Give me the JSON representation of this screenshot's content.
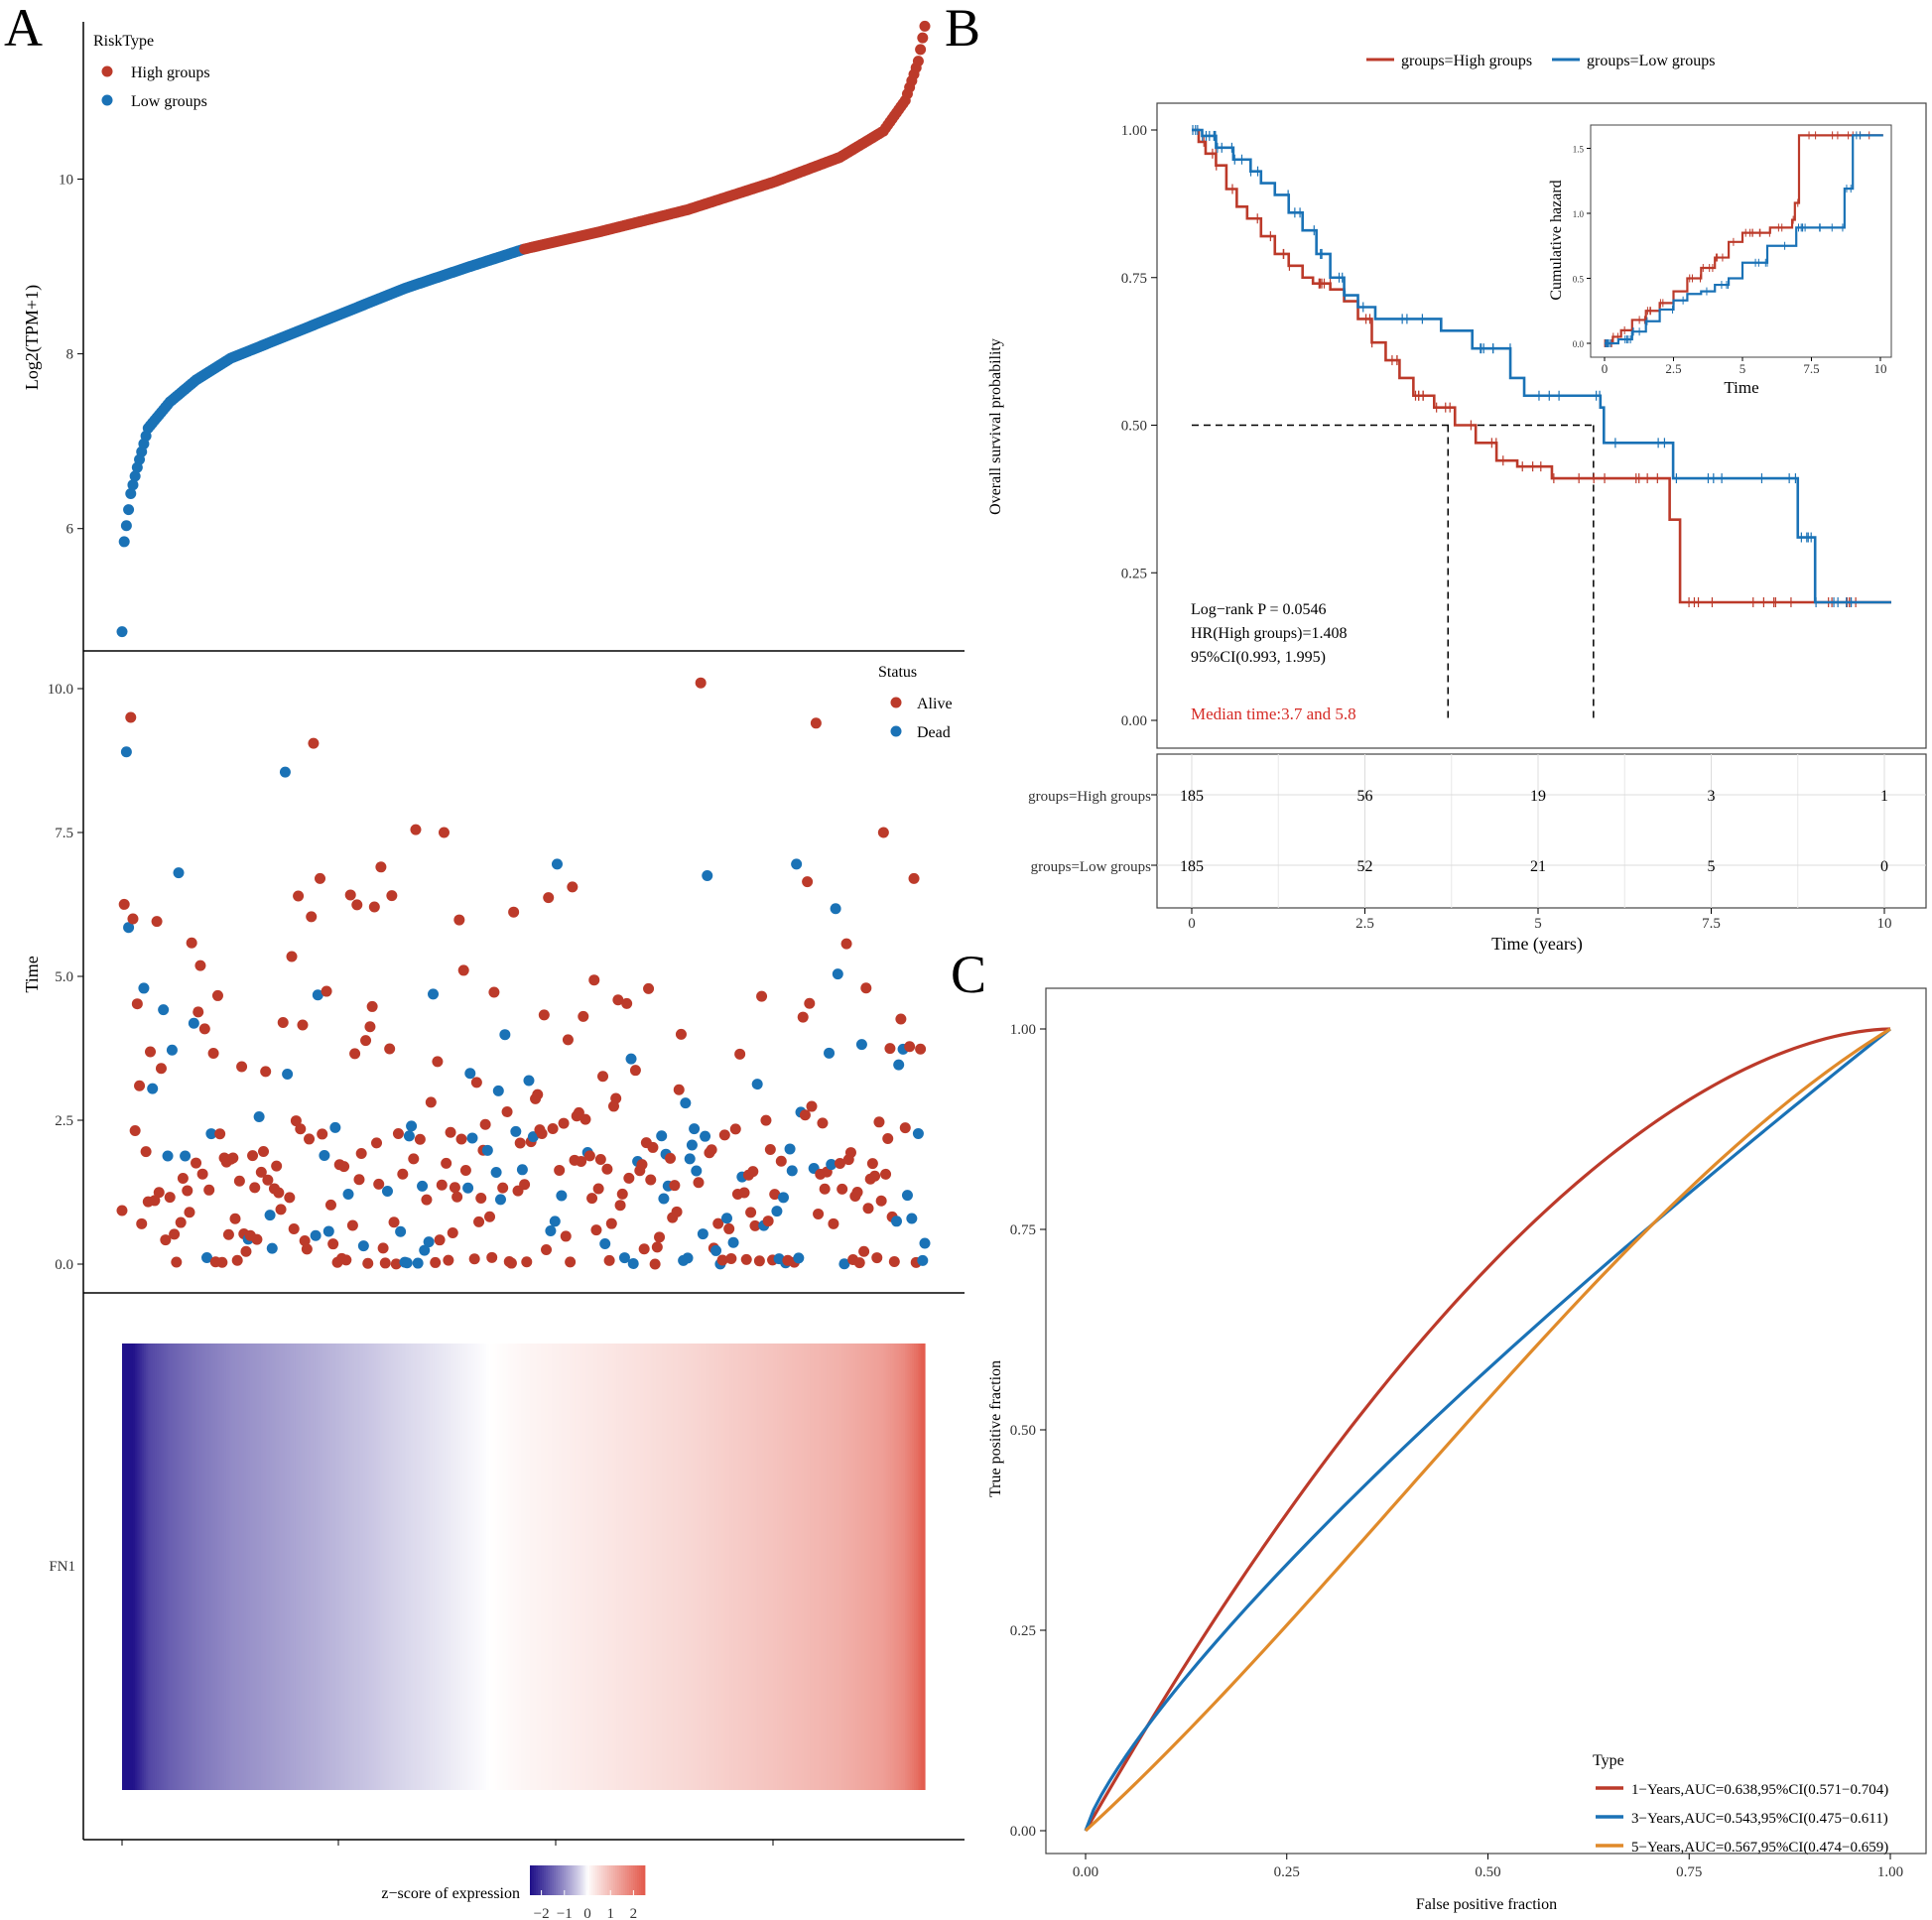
{
  "colors": {
    "high": "#bc3a2a",
    "low": "#1a72b6",
    "orange": "#e08a2a",
    "median": "#d62a25",
    "heat_low": "#21128a",
    "heat_mid": "#ffffff",
    "heat_high": "#e35c4e"
  },
  "panels": {
    "a": "A",
    "b": "B",
    "c": "C"
  },
  "chart_data": [
    {
      "id": "A-top",
      "type": "scatter",
      "ylabel": "Log2(TPM+1)",
      "xlabel": "",
      "ylim": [
        4.6,
        11.8
      ],
      "yticks": [
        6,
        8,
        10
      ],
      "legend": {
        "title": "RiskType",
        "items": [
          "High groups",
          "Low groups"
        ],
        "placement": "top-left"
      },
      "n_samples": 370,
      "split_index": 185,
      "anchors_index": [
        0,
        1,
        4,
        7,
        12,
        22,
        34,
        50,
        70,
        100,
        130,
        160,
        185,
        220,
        260,
        300,
        330,
        350,
        360,
        366,
        369
      ],
      "anchors_value": [
        4.82,
        5.85,
        6.4,
        6.7,
        7.15,
        7.45,
        7.7,
        7.95,
        8.15,
        8.45,
        8.75,
        9.0,
        9.2,
        9.4,
        9.65,
        9.97,
        10.25,
        10.55,
        10.9,
        11.35,
        11.75
      ]
    },
    {
      "id": "A-middle",
      "type": "scatter",
      "ylabel": "Time",
      "xlabel": "",
      "ylim": [
        -0.5,
        10.5
      ],
      "yticks": [
        0.0,
        2.5,
        5.0,
        7.5,
        10.0
      ],
      "ytick_labels": [
        "0.0",
        "2.5",
        "5.0",
        "7.5",
        "10.0"
      ],
      "legend": {
        "title": "Status",
        "items": [
          "Alive",
          "Dead"
        ],
        "placement": "top-right"
      },
      "highlight_points": [
        {
          "i": 2,
          "t": 8.9,
          "s": "Dead"
        },
        {
          "i": 4,
          "t": 9.5,
          "s": "Alive"
        },
        {
          "i": 3,
          "t": 5.85,
          "s": "Dead"
        },
        {
          "i": 5,
          "t": 6.0,
          "s": "Alive"
        },
        {
          "i": 75,
          "t": 8.55,
          "s": "Dead"
        },
        {
          "i": 88,
          "t": 9.05,
          "s": "Alive"
        },
        {
          "i": 91,
          "t": 6.7,
          "s": "Alive"
        },
        {
          "i": 119,
          "t": 6.9,
          "s": "Alive"
        },
        {
          "i": 135,
          "t": 7.55,
          "s": "Alive"
        },
        {
          "i": 148,
          "t": 7.5,
          "s": "Alive"
        },
        {
          "i": 200,
          "t": 6.95,
          "s": "Dead"
        },
        {
          "i": 266,
          "t": 10.1,
          "s": "Alive"
        },
        {
          "i": 319,
          "t": 9.4,
          "s": "Alive"
        },
        {
          "i": 350,
          "t": 7.5,
          "s": "Alive"
        },
        {
          "i": 310,
          "t": 6.95,
          "s": "Dead"
        },
        {
          "i": 269,
          "t": 6.75,
          "s": "Dead"
        },
        {
          "i": 364,
          "t": 6.7,
          "s": "Alive"
        },
        {
          "i": 26,
          "t": 6.8,
          "s": "Dead"
        }
      ]
    },
    {
      "id": "A-bottom",
      "type": "heatmap",
      "row_label": "FN1",
      "colorbar": {
        "title": "z−score of expression",
        "ticks": [
          "−2",
          "−1",
          "0",
          "1",
          "2"
        ]
      }
    },
    {
      "id": "B-main",
      "type": "line",
      "ylabel": "Overall survival probability",
      "xlabel": "Time (years)",
      "xlim": [
        -0.5,
        10.5
      ],
      "ylim": [
        0,
        1.0
      ],
      "xticks": [
        "0",
        "2.5",
        "5",
        "7.5",
        "10"
      ],
      "yticks": [
        "0.00",
        "0.25",
        "0.50",
        "0.75",
        "1.00"
      ],
      "legend": [
        "groups=High groups",
        "groups=Low groups"
      ],
      "series": [
        {
          "name": "High groups",
          "steps": [
            [
              0,
              1.0
            ],
            [
              0.1,
              0.98
            ],
            [
              0.2,
              0.96
            ],
            [
              0.35,
              0.94
            ],
            [
              0.5,
              0.9
            ],
            [
              0.65,
              0.87
            ],
            [
              0.8,
              0.85
            ],
            [
              1.0,
              0.82
            ],
            [
              1.2,
              0.79
            ],
            [
              1.4,
              0.77
            ],
            [
              1.6,
              0.75
            ],
            [
              1.75,
              0.74
            ],
            [
              2.0,
              0.73
            ],
            [
              2.2,
              0.71
            ],
            [
              2.4,
              0.68
            ],
            [
              2.6,
              0.64
            ],
            [
              2.8,
              0.61
            ],
            [
              3.0,
              0.58
            ],
            [
              3.2,
              0.55
            ],
            [
              3.5,
              0.53
            ],
            [
              3.8,
              0.5
            ],
            [
              4.1,
              0.47
            ],
            [
              4.4,
              0.44
            ],
            [
              4.7,
              0.43
            ],
            [
              5.2,
              0.41
            ],
            [
              6.7,
              0.41
            ],
            [
              6.9,
              0.34
            ],
            [
              7.05,
              0.2
            ],
            [
              10.1,
              0.2
            ]
          ]
        },
        {
          "name": "Low groups",
          "steps": [
            [
              0,
              1.0
            ],
            [
              0.15,
              0.99
            ],
            [
              0.35,
              0.97
            ],
            [
              0.6,
              0.95
            ],
            [
              0.85,
              0.93
            ],
            [
              1.0,
              0.91
            ],
            [
              1.2,
              0.89
            ],
            [
              1.4,
              0.86
            ],
            [
              1.6,
              0.83
            ],
            [
              1.8,
              0.79
            ],
            [
              2.0,
              0.75
            ],
            [
              2.2,
              0.72
            ],
            [
              2.4,
              0.7
            ],
            [
              2.65,
              0.68
            ],
            [
              3.6,
              0.66
            ],
            [
              4.05,
              0.63
            ],
            [
              4.6,
              0.58
            ],
            [
              4.8,
              0.55
            ],
            [
              5.9,
              0.53
            ],
            [
              5.95,
              0.47
            ],
            [
              6.95,
              0.41
            ],
            [
              8.75,
              0.31
            ],
            [
              9.0,
              0.2
            ],
            [
              10.1,
              0.2
            ]
          ]
        }
      ],
      "annotations": [
        "Log−rank P = 0.0546",
        "HR(High groups)=1.408",
        " 95%CI(0.993, 1.995)"
      ],
      "median_text": "Median time:3.7 and 5.8",
      "median_times": [
        3.7,
        5.8
      ]
    },
    {
      "id": "B-inset",
      "type": "line",
      "ylabel": "Cumulative hazard",
      "xlabel": "Time",
      "xlim": [
        -0.4,
        10.5
      ],
      "ylim": [
        -0.05,
        1.65
      ],
      "xticks": [
        "0",
        "2.5",
        "5",
        "7.5",
        "10"
      ],
      "yticks": [
        "0.0",
        "0.5",
        "1.0",
        "1.5"
      ],
      "series": [
        {
          "name": "High groups",
          "steps": [
            [
              0,
              0
            ],
            [
              0.3,
              0.05
            ],
            [
              0.6,
              0.1
            ],
            [
              1.0,
              0.18
            ],
            [
              1.5,
              0.25
            ],
            [
              2.0,
              0.31
            ],
            [
              2.5,
              0.4
            ],
            [
              3.0,
              0.5
            ],
            [
              3.5,
              0.58
            ],
            [
              4.0,
              0.66
            ],
            [
              4.5,
              0.78
            ],
            [
              5.0,
              0.85
            ],
            [
              6.0,
              0.89
            ],
            [
              6.8,
              0.95
            ],
            [
              6.9,
              1.08
            ],
            [
              7.05,
              1.6
            ],
            [
              10.1,
              1.6
            ]
          ]
        },
        {
          "name": "Low groups",
          "steps": [
            [
              0,
              0
            ],
            [
              0.5,
              0.03
            ],
            [
              1.0,
              0.09
            ],
            [
              1.5,
              0.17
            ],
            [
              2.0,
              0.26
            ],
            [
              2.5,
              0.33
            ],
            [
              3.0,
              0.38
            ],
            [
              3.5,
              0.4
            ],
            [
              4.0,
              0.45
            ],
            [
              4.5,
              0.5
            ],
            [
              5.0,
              0.62
            ],
            [
              5.9,
              0.75
            ],
            [
              6.95,
              0.89
            ],
            [
              8.7,
              1.19
            ],
            [
              9.0,
              1.6
            ],
            [
              10.1,
              1.6
            ]
          ]
        }
      ]
    },
    {
      "id": "B-risk-table",
      "type": "table",
      "row_labels": [
        "groups=High groups",
        "groups=Low groups"
      ],
      "columns": [
        "0",
        "2.5",
        "5",
        "7.5",
        "10"
      ],
      "rows": [
        [
          "185",
          "56",
          "19",
          "3",
          "1"
        ],
        [
          "185",
          "52",
          "21",
          "5",
          "0"
        ]
      ]
    },
    {
      "id": "C-roc",
      "type": "line",
      "xlabel": "False positive fraction",
      "ylabel": "True positive fraction",
      "xlim": [
        -0.05,
        1.05
      ],
      "ylim": [
        -0.05,
        1.05
      ],
      "xticks": [
        "0.00",
        "0.25",
        "0.50",
        "0.75",
        "1.00"
      ],
      "yticks": [
        "0.00",
        "0.25",
        "0.50",
        "0.75",
        "1.00"
      ],
      "legend_title": "Type",
      "series": [
        {
          "name": "1−Years,AUC=0.638,95%CI(0.571−0.704)",
          "auc": 0.638,
          "color": "#bc3a2a"
        },
        {
          "name": "3−Years,AUC=0.543,95%CI(0.475−0.611)",
          "auc": 0.543,
          "color": "#1a72b6"
        },
        {
          "name": "5−Years,AUC=0.567,95%CI(0.474−0.659)",
          "auc": 0.567,
          "color": "#e08a2a"
        }
      ]
    }
  ]
}
